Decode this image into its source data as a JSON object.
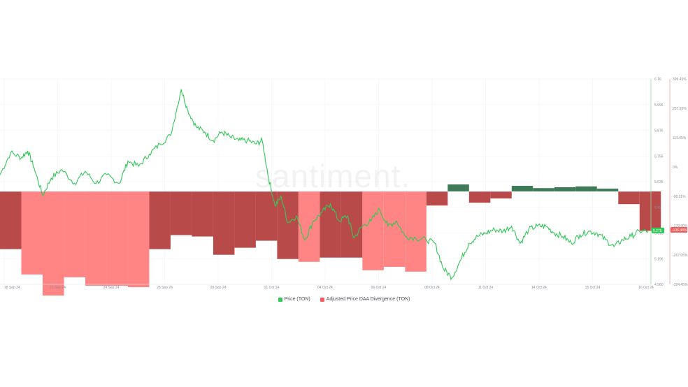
{
  "watermark": "santiment.",
  "colors": {
    "price": "#34c759",
    "div_pos": "#3f7a57",
    "div_neg_dark": "#b94a4a",
    "div_neg_light": "#ff8585",
    "price_axis": "#8fe0a6",
    "div_axis": "#f2a0a0",
    "price_badge": "#34c759",
    "div_badge": "#f25d5d"
  },
  "legend": [
    {
      "label": "Price (TON)",
      "color": "#34c759"
    },
    {
      "label": "Adjusted Price DAA Divergence (TON)",
      "color": "#f25d5d"
    }
  ],
  "chart_data": {
    "type": "bar+line",
    "x_ticks": [
      "18 Sep 24",
      "21 Sep 24",
      "24 Sep 24",
      "28 Sep 24",
      "28 Sep 24",
      "01 Oct 24",
      "04 Oct 24",
      "06 Oct 24",
      "08 Oct 24",
      "11 Oct 24",
      "14 Oct 24",
      "15 Oct 24",
      "16 Oct 24"
    ],
    "x_range": [
      0,
      30.5
    ],
    "price_axis": {
      "ticks": [
        "6.16",
        "5.996",
        "5.876",
        "5.756",
        "5.636",
        "5.42",
        "5.316",
        "5.196",
        "4.960"
      ],
      "range": [
        4.96,
        6.16
      ],
      "current_value": "5.275"
    },
    "divergence_axis": {
      "ticks": [
        "399.45%",
        "257.93%",
        "119.65%",
        "0%",
        "-98.01%",
        "-179.90%",
        "-267.05%",
        "-324.45%"
      ],
      "range": [
        -330,
        400
      ],
      "current_value": "-136.48%"
    },
    "divergence_bars": [
      {
        "day": 0,
        "value": -205,
        "shade": "dark"
      },
      {
        "day": 1,
        "value": -295,
        "shade": "light"
      },
      {
        "day": 2,
        "value": -370,
        "shade": "light"
      },
      {
        "day": 3,
        "value": -305,
        "shade": "light"
      },
      {
        "day": 4,
        "value": -335,
        "shade": "light"
      },
      {
        "day": 5,
        "value": -335,
        "shade": "light"
      },
      {
        "day": 6,
        "value": -340,
        "shade": "light"
      },
      {
        "day": 7,
        "value": -205,
        "shade": "dark"
      },
      {
        "day": 8,
        "value": -155,
        "shade": "dark"
      },
      {
        "day": 9,
        "value": -160,
        "shade": "dark"
      },
      {
        "day": 10,
        "value": -225,
        "shade": "dark"
      },
      {
        "day": 11,
        "value": -200,
        "shade": "dark"
      },
      {
        "day": 12,
        "value": -175,
        "shade": "dark"
      },
      {
        "day": 13,
        "value": -240,
        "shade": "dark"
      },
      {
        "day": 14,
        "value": -250,
        "shade": "light"
      },
      {
        "day": 15,
        "value": -235,
        "shade": "dark"
      },
      {
        "day": 16,
        "value": -235,
        "shade": "dark"
      },
      {
        "day": 17,
        "value": -280,
        "shade": "light"
      },
      {
        "day": 18,
        "value": -268,
        "shade": "light"
      },
      {
        "day": 19,
        "value": -285,
        "shade": "light"
      },
      {
        "day": 20,
        "value": -50,
        "shade": "dark"
      },
      {
        "day": 21,
        "value": 25,
        "shade": "pos"
      },
      {
        "day": 22,
        "value": -40,
        "shade": "dark"
      },
      {
        "day": 23,
        "value": -25,
        "shade": "dark"
      },
      {
        "day": 24,
        "value": 20,
        "shade": "pos"
      },
      {
        "day": 25,
        "value": 12,
        "shade": "pos"
      },
      {
        "day": 26,
        "value": 15,
        "shade": "pos"
      },
      {
        "day": 27,
        "value": 18,
        "shade": "pos"
      },
      {
        "day": 28,
        "value": 10,
        "shade": "pos"
      },
      {
        "day": 29,
        "value": -45,
        "shade": "dark"
      },
      {
        "day": 30,
        "value": -140,
        "shade": "dark"
      }
    ],
    "price_series": {
      "name": "Price (TON)",
      "points": [
        [
          0,
          5.6
        ],
        [
          0.5,
          5.73
        ],
        [
          1.0,
          5.7
        ],
        [
          1.3,
          5.74
        ],
        [
          1.6,
          5.64
        ],
        [
          2.0,
          5.48
        ],
        [
          2.4,
          5.58
        ],
        [
          2.9,
          5.63
        ],
        [
          3.5,
          5.55
        ],
        [
          4.0,
          5.62
        ],
        [
          4.5,
          5.55
        ],
        [
          5.0,
          5.6
        ],
        [
          5.6,
          5.55
        ],
        [
          6.0,
          5.68
        ],
        [
          6.5,
          5.65
        ],
        [
          7.0,
          5.72
        ],
        [
          7.5,
          5.78
        ],
        [
          8.0,
          5.83
        ],
        [
          8.5,
          6.1
        ],
        [
          8.8,
          5.98
        ],
        [
          9.2,
          5.88
        ],
        [
          9.6,
          5.85
        ],
        [
          10.0,
          5.8
        ],
        [
          10.4,
          5.85
        ],
        [
          10.8,
          5.82
        ],
        [
          11.2,
          5.8
        ],
        [
          11.6,
          5.8
        ],
        [
          12.0,
          5.78
        ],
        [
          12.3,
          5.8
        ],
        [
          12.6,
          5.58
        ],
        [
          12.9,
          5.42
        ],
        [
          13.2,
          5.47
        ],
        [
          13.5,
          5.32
        ],
        [
          13.9,
          5.36
        ],
        [
          14.3,
          5.22
        ],
        [
          14.7,
          5.33
        ],
        [
          15.1,
          5.38
        ],
        [
          15.5,
          5.43
        ],
        [
          15.9,
          5.33
        ],
        [
          16.3,
          5.36
        ],
        [
          16.6,
          5.23
        ],
        [
          17.0,
          5.3
        ],
        [
          17.4,
          5.33
        ],
        [
          17.8,
          5.4
        ],
        [
          18.2,
          5.3
        ],
        [
          18.6,
          5.33
        ],
        [
          19.0,
          5.24
        ],
        [
          19.5,
          5.23
        ],
        [
          20.0,
          5.22
        ],
        [
          20.4,
          5.2
        ],
        [
          20.8,
          5.05
        ],
        [
          21.2,
          5.0
        ],
        [
          21.6,
          5.1
        ],
        [
          22.0,
          5.2
        ],
        [
          22.4,
          5.24
        ],
        [
          22.8,
          5.26
        ],
        [
          23.2,
          5.28
        ],
        [
          23.6,
          5.27
        ],
        [
          24.0,
          5.3
        ],
        [
          24.4,
          5.2
        ],
        [
          24.8,
          5.28
        ],
        [
          25.2,
          5.3
        ],
        [
          25.6,
          5.3
        ],
        [
          26.0,
          5.26
        ],
        [
          26.4,
          5.24
        ],
        [
          26.8,
          5.2
        ],
        [
          27.2,
          5.25
        ],
        [
          27.6,
          5.27
        ],
        [
          28.0,
          5.26
        ],
        [
          28.4,
          5.22
        ],
        [
          28.8,
          5.18
        ],
        [
          29.2,
          5.22
        ],
        [
          29.6,
          5.24
        ],
        [
          30.0,
          5.27
        ],
        [
          30.4,
          5.27
        ]
      ]
    }
  }
}
